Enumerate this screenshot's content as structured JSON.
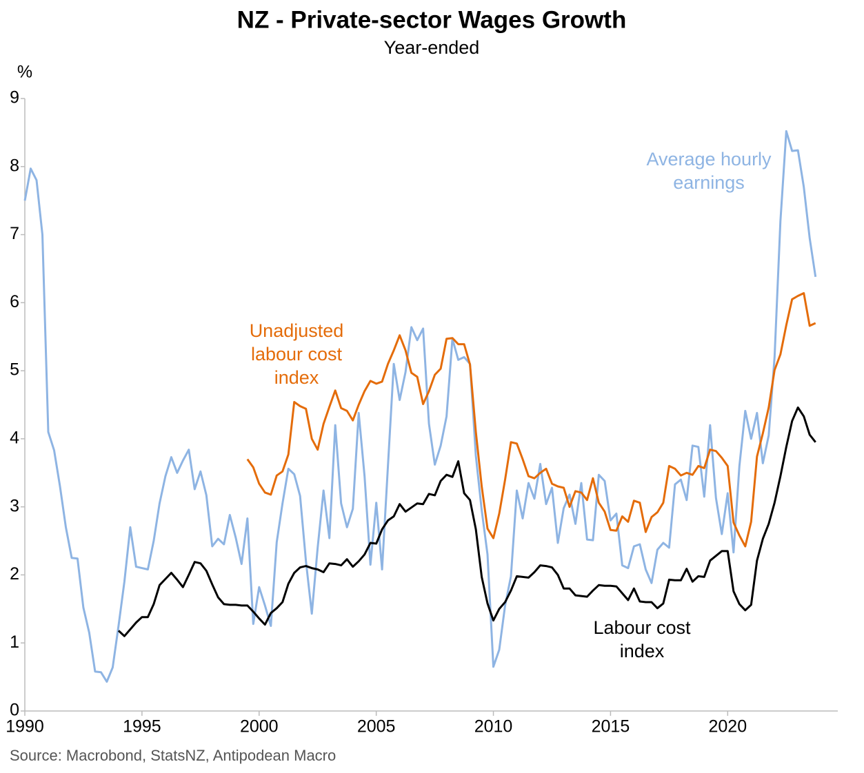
{
  "chart_data": {
    "type": "line",
    "title": "NZ - Private-sector Wages Growth",
    "subtitle": "Year-ended",
    "y_label": "%",
    "source": "Source: Macrobond, StatsNZ, Antipodean Macro",
    "xlim": [
      1990,
      2024.7
    ],
    "xticks": [
      1990,
      1995,
      2000,
      2005,
      2010,
      2015,
      2020
    ],
    "ylim": [
      0,
      9
    ],
    "yticks": [
      0,
      1,
      2,
      3,
      4,
      5,
      6,
      7,
      8,
      9
    ],
    "grid": false,
    "x": [
      1990,
      1990.25,
      1990.5,
      1990.75,
      1991,
      1991.25,
      1991.5,
      1991.75,
      1992,
      1992.25,
      1992.5,
      1992.75,
      1993,
      1993.25,
      1993.5,
      1993.75,
      1994,
      1994.25,
      1994.5,
      1994.75,
      1995,
      1995.25,
      1995.5,
      1995.75,
      1996,
      1996.25,
      1996.5,
      1996.75,
      1997,
      1997.25,
      1997.5,
      1997.75,
      1998,
      1998.25,
      1998.5,
      1998.75,
      1999,
      1999.25,
      1999.5,
      1999.75,
      2000,
      2000.25,
      2000.5,
      2000.75,
      2001,
      2001.25,
      2001.5,
      2001.75,
      2002,
      2002.25,
      2002.5,
      2002.75,
      2003,
      2003.25,
      2003.5,
      2003.75,
      2004,
      2004.25,
      2004.5,
      2004.75,
      2005,
      2005.25,
      2005.5,
      2005.75,
      2006,
      2006.25,
      2006.5,
      2006.75,
      2007,
      2007.25,
      2007.5,
      2007.75,
      2008,
      2008.25,
      2008.5,
      2008.75,
      2009,
      2009.25,
      2009.5,
      2009.75,
      2010,
      2010.25,
      2010.5,
      2010.75,
      2011,
      2011.25,
      2011.5,
      2011.75,
      2012,
      2012.25,
      2012.5,
      2012.75,
      2013,
      2013.25,
      2013.5,
      2013.75,
      2014,
      2014.25,
      2014.5,
      2014.75,
      2015,
      2015.25,
      2015.5,
      2015.75,
      2016,
      2016.25,
      2016.5,
      2016.75,
      2017,
      2017.25,
      2017.5,
      2017.75,
      2018,
      2018.25,
      2018.5,
      2018.75,
      2019,
      2019.25,
      2019.5,
      2019.75,
      2020,
      2020.25,
      2020.5,
      2020.75,
      2021,
      2021.25,
      2021.5,
      2021.75,
      2022,
      2022.25,
      2022.5,
      2022.75,
      2023,
      2023.25,
      2023.5,
      2023.75
    ],
    "series": [
      {
        "label": [
          "Average hourly",
          "earnings"
        ],
        "color": "#8eb4e3",
        "values": [
          7.5,
          7.97,
          7.8,
          7.0,
          4.1,
          3.83,
          3.3,
          2.7,
          2.25,
          2.24,
          1.52,
          1.15,
          0.58,
          0.57,
          0.43,
          0.64,
          1.25,
          1.9,
          2.7,
          2.12,
          2.1,
          2.08,
          2.5,
          3.05,
          3.45,
          3.73,
          3.5,
          3.68,
          3.84,
          3.26,
          3.52,
          3.17,
          2.42,
          2.53,
          2.45,
          2.88,
          2.55,
          2.16,
          2.83,
          1.28,
          1.82,
          1.55,
          1.25,
          2.48,
          3.05,
          3.56,
          3.48,
          3.16,
          2.2,
          1.43,
          2.4,
          3.24,
          2.54,
          4.2,
          3.05,
          2.7,
          2.97,
          4.38,
          3.45,
          2.15,
          3.06,
          2.08,
          3.6,
          5.1,
          4.57,
          4.98,
          5.64,
          5.45,
          5.62,
          4.22,
          3.62,
          3.9,
          4.33,
          5.47,
          5.16,
          5.2,
          5.1,
          3.75,
          2.95,
          2.3,
          0.65,
          0.9,
          1.55,
          1.98,
          3.24,
          2.83,
          3.35,
          3.12,
          3.63,
          3.04,
          3.28,
          2.47,
          2.98,
          3.18,
          2.75,
          3.35,
          2.52,
          2.51,
          3.47,
          3.38,
          2.8,
          2.9,
          2.14,
          2.1,
          2.42,
          2.45,
          2.08,
          1.88,
          2.37,
          2.47,
          2.4,
          3.33,
          3.4,
          3.1,
          3.9,
          3.88,
          3.15,
          4.2,
          3.13,
          2.6,
          3.2,
          2.33,
          3.6,
          4.41,
          4.0,
          4.38,
          3.64,
          4.05,
          5.2,
          7.2,
          8.52,
          8.23,
          8.24,
          7.7,
          6.95,
          6.38
        ]
      },
      {
        "label": [
          "Unadjusted",
          "labour cost",
          "index"
        ],
        "color": "#e46c0a",
        "values": [
          null,
          null,
          null,
          null,
          null,
          null,
          null,
          null,
          null,
          null,
          null,
          null,
          null,
          null,
          null,
          null,
          null,
          null,
          null,
          null,
          null,
          null,
          null,
          null,
          null,
          null,
          null,
          null,
          null,
          null,
          null,
          null,
          null,
          null,
          null,
          null,
          null,
          null,
          3.7,
          3.58,
          3.34,
          3.21,
          3.18,
          3.46,
          3.52,
          3.77,
          4.54,
          4.48,
          4.44,
          4.0,
          3.84,
          4.22,
          4.47,
          4.71,
          4.45,
          4.41,
          4.27,
          4.5,
          4.7,
          4.85,
          4.81,
          4.84,
          5.1,
          5.3,
          5.52,
          5.3,
          4.97,
          4.91,
          4.51,
          4.7,
          4.94,
          5.03,
          5.47,
          5.48,
          5.39,
          5.39,
          5.09,
          4.1,
          3.3,
          2.68,
          2.54,
          2.9,
          3.4,
          3.95,
          3.93,
          3.7,
          3.45,
          3.42,
          3.5,
          3.56,
          3.34,
          3.3,
          3.28,
          3.0,
          3.23,
          3.21,
          3.1,
          3.42,
          3.06,
          2.93,
          2.66,
          2.65,
          2.86,
          2.78,
          3.09,
          3.06,
          2.63,
          2.85,
          2.92,
          3.06,
          3.6,
          3.56,
          3.46,
          3.5,
          3.47,
          3.6,
          3.57,
          3.84,
          3.82,
          3.72,
          3.6,
          2.77,
          2.58,
          2.42,
          2.78,
          3.74,
          4.08,
          4.46,
          5.01,
          5.24,
          5.67,
          6.05,
          6.1,
          6.14,
          5.66,
          5.7
        ]
      },
      {
        "label": [
          "Labour cost",
          "index"
        ],
        "color": "#000000",
        "values": [
          null,
          null,
          null,
          null,
          null,
          null,
          null,
          null,
          null,
          null,
          null,
          null,
          null,
          null,
          null,
          null,
          1.18,
          1.1,
          1.2,
          1.3,
          1.38,
          1.38,
          1.57,
          1.85,
          1.94,
          2.03,
          1.93,
          1.82,
          2.0,
          2.19,
          2.17,
          2.06,
          1.86,
          1.67,
          1.57,
          1.56,
          1.56,
          1.55,
          1.55,
          1.46,
          1.36,
          1.27,
          1.44,
          1.51,
          1.6,
          1.87,
          2.03,
          2.11,
          2.13,
          2.1,
          2.08,
          2.04,
          2.17,
          2.16,
          2.14,
          2.23,
          2.12,
          2.2,
          2.3,
          2.47,
          2.46,
          2.67,
          2.8,
          2.86,
          3.04,
          2.93,
          2.99,
          3.05,
          3.04,
          3.19,
          3.17,
          3.38,
          3.47,
          3.44,
          3.67,
          3.2,
          3.1,
          2.67,
          1.97,
          1.58,
          1.33,
          1.5,
          1.6,
          1.77,
          1.98,
          1.97,
          1.96,
          2.04,
          2.14,
          2.13,
          2.11,
          2.0,
          1.8,
          1.8,
          1.7,
          1.69,
          1.68,
          1.77,
          1.85,
          1.84,
          1.84,
          1.83,
          1.73,
          1.63,
          1.8,
          1.61,
          1.6,
          1.6,
          1.51,
          1.58,
          1.93,
          1.92,
          1.92,
          2.09,
          1.9,
          1.98,
          1.97,
          2.21,
          2.28,
          2.35,
          2.35,
          1.76,
          1.57,
          1.48,
          1.56,
          2.21,
          2.53,
          2.75,
          3.06,
          3.45,
          3.88,
          4.26,
          4.46,
          4.33,
          4.06,
          3.95
        ]
      }
    ]
  }
}
